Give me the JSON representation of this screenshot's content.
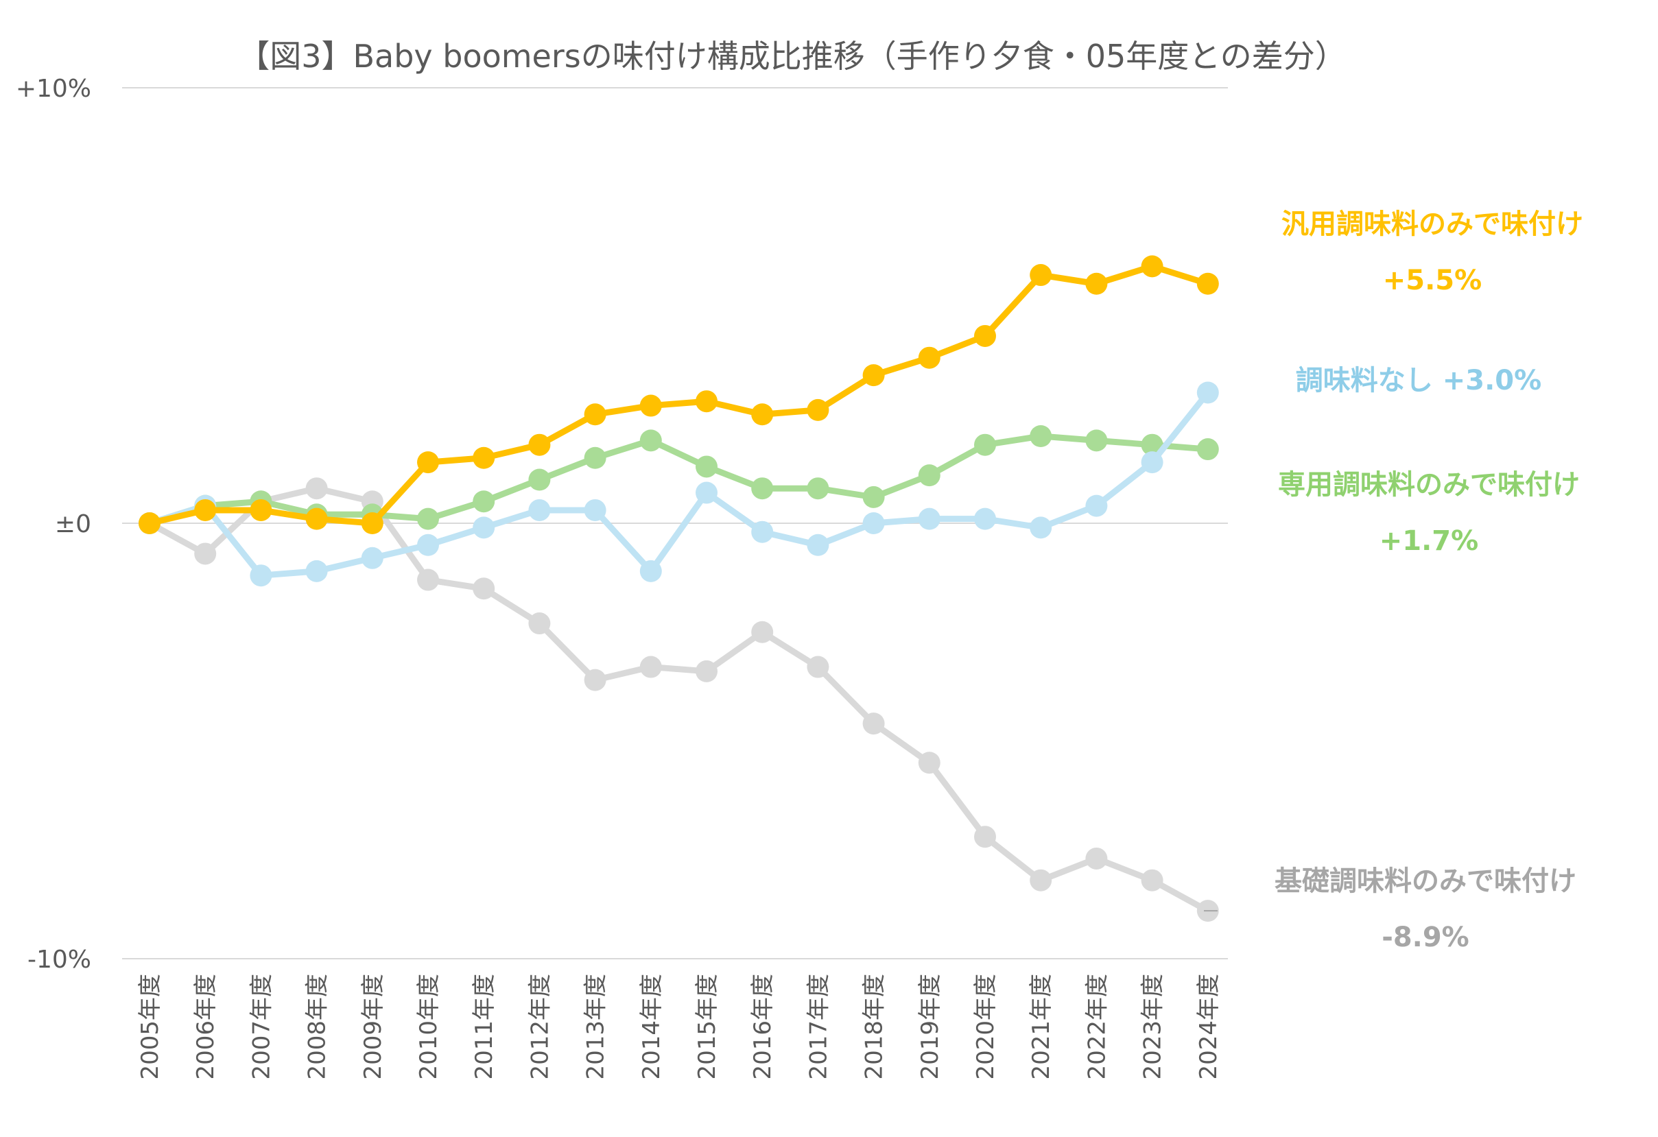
{
  "chart_data": {
    "type": "line",
    "title": "【図3】Baby boomersの味付け構成比推移（手作り夕食・05年度との差分）",
    "xlabel": "",
    "ylabel": "",
    "ylim": [
      -10,
      10
    ],
    "yticks": [
      {
        "value": 10,
        "label": "+10%"
      },
      {
        "value": 0,
        "label": "±0"
      },
      {
        "value": -10,
        "label": "-10%"
      }
    ],
    "grid": true,
    "legend": "none (direct labels on right)",
    "categories": [
      "2005年度",
      "2006年度",
      "2007年度",
      "2008年度",
      "2009年度",
      "2010年度",
      "2011年度",
      "2012年度",
      "2013年度",
      "2014年度",
      "2015年度",
      "2016年度",
      "2017年度",
      "2018年度",
      "2019年度",
      "2020年度",
      "2021年度",
      "2022年度",
      "2023年度",
      "2024年度"
    ],
    "series": [
      {
        "name": "基礎調味料のみで味付け",
        "color": "#d9d9d9",
        "label_color": "#a6a6a6",
        "final_label": "-8.9%",
        "values": [
          0,
          -0.7,
          0.5,
          0.8,
          0.5,
          -1.3,
          -1.5,
          -2.3,
          -3.6,
          -3.3,
          -3.4,
          -2.5,
          -3.3,
          -4.6,
          -5.5,
          -7.2,
          -8.2,
          -7.7,
          -8.2,
          -8.9
        ]
      },
      {
        "name": "専用調味料のみで味付け",
        "color": "#a9dc96",
        "label_color": "#8fd16f",
        "final_label": "+1.7%",
        "values": [
          0,
          0.4,
          0.5,
          0.2,
          0.2,
          0.1,
          0.5,
          1.0,
          1.5,
          1.9,
          1.3,
          0.8,
          0.8,
          0.6,
          1.1,
          1.8,
          2.0,
          1.9,
          1.8,
          1.7
        ]
      },
      {
        "name": "調味料なし",
        "color": "#bfe3f4",
        "label_color": "#8ecde8",
        "final_label": "+3.0%",
        "values": [
          0,
          0.4,
          -1.2,
          -1.1,
          -0.8,
          -0.5,
          -0.1,
          0.3,
          0.3,
          -1.1,
          0.7,
          -0.2,
          -0.5,
          0.0,
          0.1,
          0.1,
          -0.1,
          0.4,
          1.4,
          3.0
        ]
      },
      {
        "name": "汎用調味料のみで味付け",
        "color": "#ffc000",
        "label_color": "#ffc000",
        "final_label": "+5.5%",
        "values": [
          0,
          0.3,
          0.3,
          0.1,
          0.0,
          1.4,
          1.5,
          1.8,
          2.5,
          2.7,
          2.8,
          2.5,
          2.6,
          3.4,
          3.8,
          4.3,
          5.7,
          5.5,
          5.9,
          5.5
        ]
      }
    ]
  }
}
